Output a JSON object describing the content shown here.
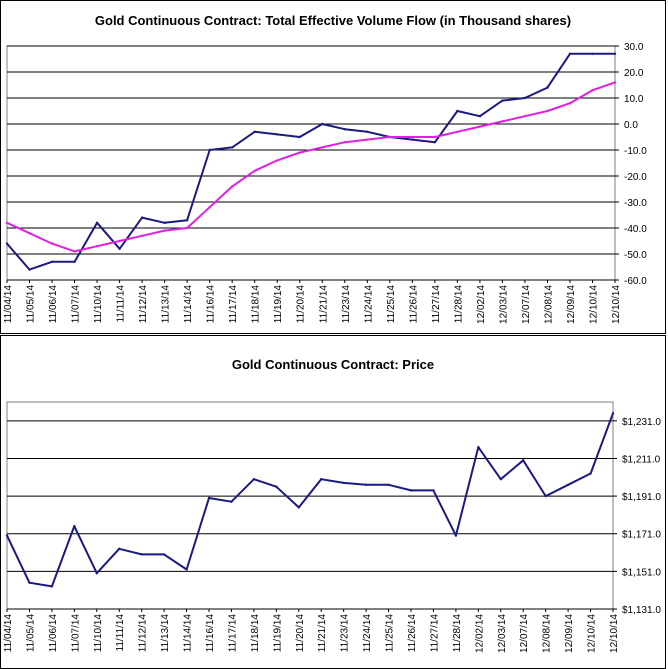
{
  "colors": {
    "volume_line": "#1a1a80",
    "moving_average": "#e020e0",
    "price_line": "#1a1a80",
    "gridline": "#000000",
    "background": "#ffffff"
  },
  "chart_data": [
    {
      "type": "line",
      "title": "Gold Continuous Contract: Total Effective Volume Flow (in Thousand shares)",
      "ylabel": "",
      "xlabel": "",
      "ylim": [
        -60,
        30
      ],
      "y_tick_labels": [
        "30.0",
        "20.0",
        "10.0",
        "0.0",
        "-10.0",
        "-20.0",
        "-30.0",
        "-40.0",
        "-50.0",
        "-60.0"
      ],
      "y_tick_values": [
        30,
        20,
        10,
        0,
        -10,
        -20,
        -30,
        -40,
        -50,
        -60
      ],
      "grid": "horizontal",
      "axis_position": "right",
      "categories": [
        "11/04/14",
        "11/05/14",
        "11/06/14",
        "11/07/14",
        "11/10/14",
        "11/11/14",
        "11/12/14",
        "11/13/14",
        "11/14/14",
        "11/16/14",
        "11/17/14",
        "11/18/14",
        "11/19/14",
        "11/20/14",
        "11/21/14",
        "11/23/14",
        "11/24/14",
        "11/25/14",
        "11/26/14",
        "11/27/14",
        "11/28/14",
        "12/02/14",
        "12/03/14",
        "12/07/14",
        "12/08/14",
        "12/09/14",
        "12/10/14",
        "12/10/14"
      ],
      "series": [
        {
          "values": [
            -46,
            -56,
            -53,
            -53,
            -38,
            -48,
            -36,
            -38,
            -37,
            -10,
            -9,
            -3,
            -4,
            -5,
            0,
            -2,
            -3,
            -5,
            -6,
            -7,
            5,
            3,
            9,
            10,
            14,
            27,
            27,
            27
          ]
        },
        {
          "values": [
            -38,
            -42,
            -46,
            -49,
            -47,
            -45,
            -43,
            -41,
            -40,
            -32,
            -24,
            -18,
            -14,
            -11,
            -9,
            -7,
            -6,
            -5,
            -5,
            -5,
            -3,
            -1,
            1,
            3,
            5,
            8,
            13,
            16
          ]
        }
      ]
    },
    {
      "type": "line",
      "title": "Gold Continuous Contract: Price",
      "ylabel": "",
      "xlabel": "",
      "ylim": [
        1131,
        1241
      ],
      "y_tick_labels": [
        "$1,231.0",
        "$1,211.0",
        "$1,191.0",
        "$1,171.0",
        "$1,151.0",
        "$1,131.0"
      ],
      "y_tick_values": [
        1231,
        1211,
        1191,
        1171,
        1151,
        1131
      ],
      "grid": "horizontal",
      "axis_position": "right",
      "categories": [
        "11/04/14",
        "11/05/14",
        "11/06/14",
        "11/07/14",
        "11/10/14",
        "11/11/14",
        "11/12/14",
        "11/13/14",
        "11/14/14",
        "11/16/14",
        "11/17/14",
        "11/18/14",
        "11/19/14",
        "11/20/14",
        "11/21/14",
        "11/23/14",
        "11/24/14",
        "11/25/14",
        "11/26/14",
        "11/27/14",
        "11/28/14",
        "12/02/14",
        "12/03/14",
        "12/07/14",
        "12/08/14",
        "12/09/14",
        "12/10/14",
        "12/10/14"
      ],
      "series": [
        {
          "values": [
            1170,
            1145,
            1143,
            1175,
            1150,
            1163,
            1160,
            1160,
            1152,
            1190,
            1188,
            1200,
            1196,
            1185,
            1200,
            1198,
            1197,
            1197,
            1194,
            1194,
            1170,
            1217,
            1200,
            1210,
            1191,
            1197,
            1203,
            1235
          ]
        }
      ]
    }
  ]
}
